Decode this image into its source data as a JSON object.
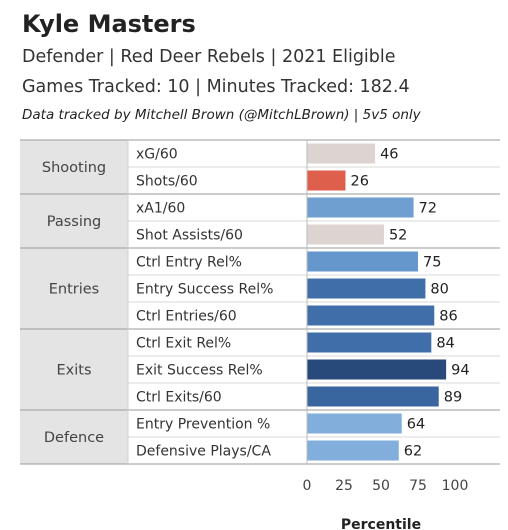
{
  "header": {
    "title": "Kyle Masters",
    "subtitle1": "Defender | Red Deer Rebels | 2021 Eligible",
    "subtitle2": "Games Tracked: 10 | Minutes Tracked: 182.4",
    "credit": "Data tracked by Mitchell Brown (@MitchLBrown) | 5v5 only"
  },
  "chart_data": {
    "type": "bar",
    "orientation": "horizontal",
    "xlabel": "Percentile",
    "xlim": [
      0,
      100
    ],
    "xticks": [
      0,
      25,
      50,
      75,
      100
    ],
    "grid": false,
    "groups": [
      {
        "name": "Shooting",
        "metrics": [
          {
            "label": "xG/60",
            "value": 46,
            "color": "#ddd4d2"
          },
          {
            "label": "Shots/60",
            "value": 26,
            "color": "#df5f4d"
          }
        ]
      },
      {
        "name": "Passing",
        "metrics": [
          {
            "label": "xA1/60",
            "value": 72,
            "color": "#6f9ed1"
          },
          {
            "label": "Shot Assists/60",
            "value": 52,
            "color": "#ddd4d2"
          }
        ]
      },
      {
        "name": "Entries",
        "metrics": [
          {
            "label": "Ctrl Entry Rel%",
            "value": 75,
            "color": "#6597cd"
          },
          {
            "label": "Entry Success Rel%",
            "value": 80,
            "color": "#3f6ea8"
          },
          {
            "label": "Ctrl Entries/60",
            "value": 86,
            "color": "#3f6ea8"
          }
        ]
      },
      {
        "name": "Exits",
        "metrics": [
          {
            "label": "Ctrl Exit Rel%",
            "value": 84,
            "color": "#3f6ea8"
          },
          {
            "label": "Exit Success Rel%",
            "value": 94,
            "color": "#284a7b"
          },
          {
            "label": "Ctrl Exits/60",
            "value": 89,
            "color": "#3a66a0"
          }
        ]
      },
      {
        "name": "Defence",
        "metrics": [
          {
            "label": "Entry Prevention %",
            "value": 64,
            "color": "#82aedb"
          },
          {
            "label": "Defensive Plays/CA",
            "value": 62,
            "color": "#82aedb"
          }
        ]
      }
    ]
  }
}
